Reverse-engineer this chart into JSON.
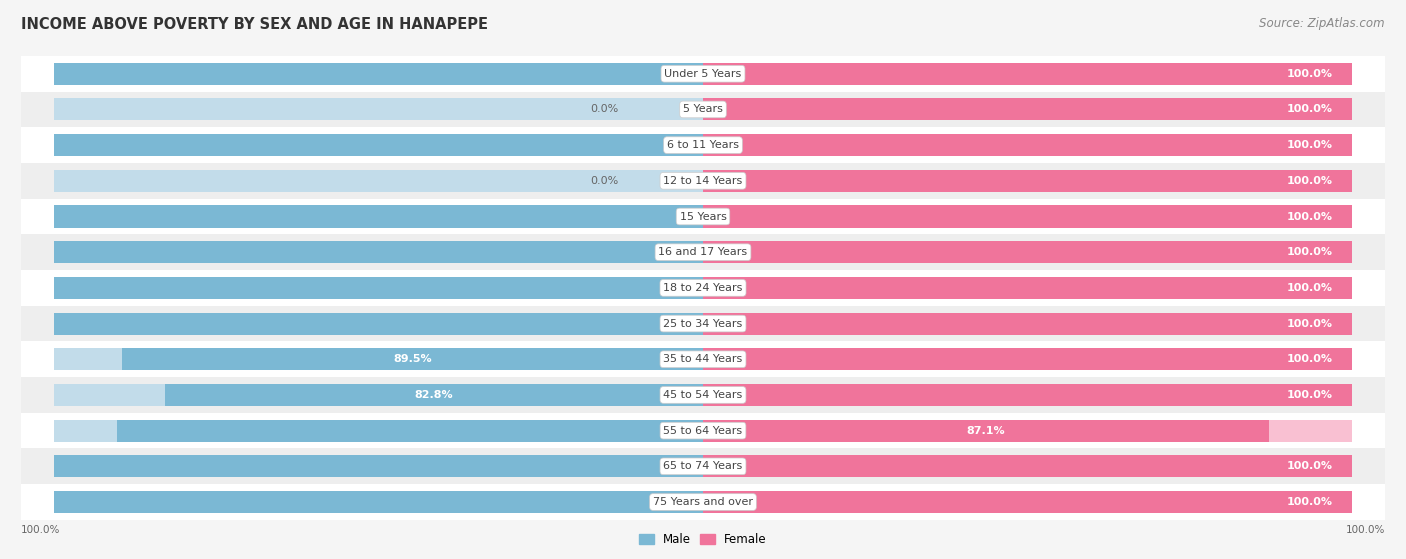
{
  "title": "INCOME ABOVE POVERTY BY SEX AND AGE IN HANAPEPE",
  "source": "Source: ZipAtlas.com",
  "categories": [
    "Under 5 Years",
    "5 Years",
    "6 to 11 Years",
    "12 to 14 Years",
    "15 Years",
    "16 and 17 Years",
    "18 to 24 Years",
    "25 to 34 Years",
    "35 to 44 Years",
    "45 to 54 Years",
    "55 to 64 Years",
    "65 to 74 Years",
    "75 Years and over"
  ],
  "male_values": [
    100.0,
    0.0,
    100.0,
    0.0,
    100.0,
    100.0,
    100.0,
    100.0,
    89.5,
    82.8,
    90.2,
    100.0,
    100.0
  ],
  "female_values": [
    100.0,
    100.0,
    100.0,
    100.0,
    100.0,
    100.0,
    100.0,
    100.0,
    100.0,
    100.0,
    87.1,
    100.0,
    100.0
  ],
  "male_color": "#7bb8d4",
  "female_color": "#f0749b",
  "male_color_light": "#c2dcea",
  "female_color_light": "#f9c0d2",
  "row_colors": [
    "#ffffff",
    "#eeeeee"
  ],
  "bg_color": "#f5f5f5",
  "label_white": "#ffffff",
  "label_dark": "#666666",
  "cat_label_color": "#444444",
  "bar_height": 0.62,
  "max_value": 100.0,
  "zero_stub": 12.0,
  "title_fontsize": 10.5,
  "source_fontsize": 8.5,
  "label_fontsize": 8.0,
  "category_fontsize": 8.0,
  "axis_label_fontsize": 7.5
}
